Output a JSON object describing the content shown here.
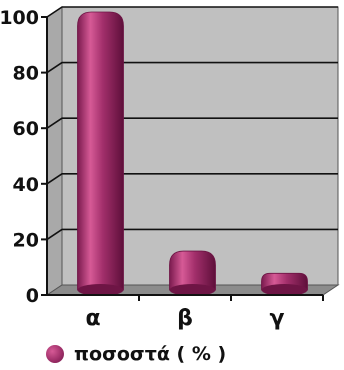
{
  "chart_data": {
    "type": "bar",
    "categories": [
      "α",
      "β",
      "γ"
    ],
    "series": [
      {
        "name": "ποσοστά ( % )",
        "values": [
          100,
          14,
          6
        ]
      }
    ],
    "ylim": [
      0,
      100
    ],
    "yticks": [
      "0",
      "20",
      "40",
      "60",
      "80",
      "100"
    ],
    "grid": true,
    "legend_position": "bottom-left",
    "colors": {
      "bar": "#a22f6b",
      "bar_highlight": "#d65a96",
      "bar_shadow": "#6e1545",
      "plot_background": "#c0c0c0",
      "wall": "#a9a9a9",
      "floor": "#8c8c8c"
    }
  }
}
